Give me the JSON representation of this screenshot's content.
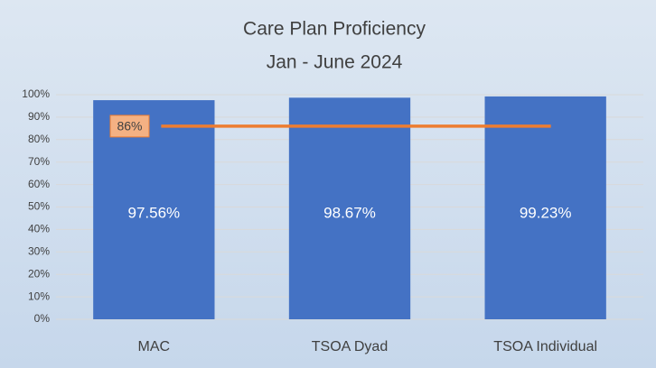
{
  "chart_data": {
    "type": "bar",
    "title": "Care Plan Proficiency",
    "subtitle": "Jan - June 2024",
    "categories": [
      "MAC",
      "TSOA Dyad",
      "TSOA Individual"
    ],
    "values": [
      97.56,
      98.67,
      99.23
    ],
    "value_labels": [
      "97.56%",
      "98.67%",
      "99.23%"
    ],
    "color": "#4472c4",
    "target": {
      "value": 86,
      "label": "86%",
      "color": "#ed7d31"
    },
    "ylim": [
      0,
      100
    ],
    "yticks": [
      {
        "value": 0,
        "label": "0%"
      },
      {
        "value": 10,
        "label": "10%"
      },
      {
        "value": 20,
        "label": "20%"
      },
      {
        "value": 30,
        "label": "30%"
      },
      {
        "value": 40,
        "label": "40%"
      },
      {
        "value": 50,
        "label": "50%"
      },
      {
        "value": 60,
        "label": "60%"
      },
      {
        "value": 70,
        "label": "70%"
      },
      {
        "value": 80,
        "label": "80%"
      },
      {
        "value": 90,
        "label": "90%"
      },
      {
        "value": 100,
        "label": "100%"
      }
    ],
    "grid": true
  }
}
